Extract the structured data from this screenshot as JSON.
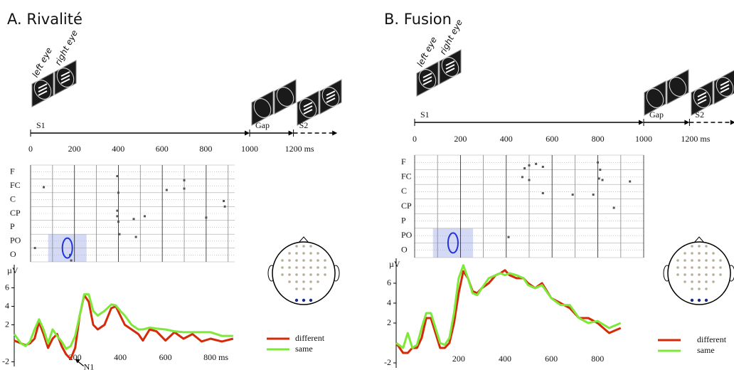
{
  "panels": [
    {
      "title": "A. Rivalité",
      "timeline": {
        "eye_labels": [
          "left eye",
          "right eye"
        ],
        "ticks": [
          0,
          200,
          400,
          600,
          800,
          1000,
          {
            "value": 1200,
            "label": "1200 ms"
          }
        ],
        "phases": [
          {
            "label": "S1",
            "start": 0,
            "end": 1000
          },
          {
            "label": "Gap",
            "start": 1000,
            "end": 1200
          },
          {
            "label": "S2",
            "start": 1200,
            "end": 1400
          }
        ]
      },
      "raster": {
        "rows": [
          "F",
          "FC",
          "C",
          "CP",
          "P",
          "PO",
          "O"
        ],
        "xlim": [
          0,
          930
        ],
        "points": [
          {
            "x": 395,
            "y": 0.3
          },
          {
            "x": 400,
            "y": 1.5
          },
          {
            "x": 395,
            "y": 2.8
          },
          {
            "x": 395,
            "y": 3.2
          },
          {
            "x": 400,
            "y": 3.6
          },
          {
            "x": 405,
            "y": 4.5
          },
          {
            "x": 470,
            "y": 3.4
          },
          {
            "x": 480,
            "y": 4.7
          },
          {
            "x": 520,
            "y": 3.2
          },
          {
            "x": 620,
            "y": 1.3
          },
          {
            "x": 700,
            "y": 0.6
          },
          {
            "x": 700,
            "y": 1.2
          },
          {
            "x": 800,
            "y": 3.3
          },
          {
            "x": 880,
            "y": 2.1
          },
          {
            "x": 885,
            "y": 2.5
          },
          {
            "x": 180,
            "y": 6.0
          },
          {
            "x": 185,
            "y": 6.4
          },
          {
            "x": 60,
            "y": 1.1
          },
          {
            "x": 20,
            "y": 5.5
          }
        ]
      }
    },
    {
      "title": "B. Fusion",
      "timeline": {
        "eye_labels": [
          "left eye",
          "right eye"
        ],
        "ticks": [
          0,
          200,
          400,
          600,
          800,
          1000,
          {
            "value": 1200,
            "label": "1200 ms"
          }
        ],
        "phases": [
          {
            "label": "S1",
            "start": 0,
            "end": 1000
          },
          {
            "label": "Gap",
            "start": 1000,
            "end": 1200
          },
          {
            "label": "S2",
            "start": 1200,
            "end": 1400
          }
        ]
      },
      "raster": {
        "rows": [
          "F",
          "FC",
          "C",
          "CP",
          "P",
          "PO",
          "O"
        ],
        "xlim": [
          0,
          1000
        ],
        "points": [
          {
            "x": 410,
            "y": 5.1
          },
          {
            "x": 500,
            "y": 0.2
          },
          {
            "x": 530,
            "y": 0.1
          },
          {
            "x": 560,
            "y": 0.3
          },
          {
            "x": 480,
            "y": 0.4
          },
          {
            "x": 500,
            "y": 1.2
          },
          {
            "x": 470,
            "y": 1.0
          },
          {
            "x": 800,
            "y": 0
          },
          {
            "x": 810,
            "y": 0.5
          },
          {
            "x": 805,
            "y": 1.1
          },
          {
            "x": 820,
            "y": 1.2
          },
          {
            "x": 560,
            "y": 2.1
          },
          {
            "x": 690,
            "y": 2.2
          },
          {
            "x": 780,
            "y": 2.2
          },
          {
            "x": 870,
            "y": 3.1
          },
          {
            "x": 940,
            "y": 1.3
          }
        ]
      }
    }
  ],
  "chart_data": [
    {
      "type": "line",
      "ylabel": "µV",
      "annotation": "N1",
      "x": [
        -70,
        -40,
        -20,
        0,
        20,
        40,
        60,
        80,
        100,
        120,
        140,
        160,
        180,
        200,
        220,
        240,
        260,
        280,
        300,
        330,
        360,
        380,
        400,
        420,
        450,
        480,
        500,
        530,
        560,
        600,
        640,
        680,
        720,
        760,
        800,
        850,
        900
      ],
      "xlim": [
        -70,
        910
      ],
      "ylim": [
        -2.5,
        8.5
      ],
      "xticks": [
        200,
        400,
        600,
        {
          "value": 800,
          "label": "800 ms"
        }
      ],
      "yticks": [
        6,
        4,
        2,
        -2
      ],
      "series": [
        {
          "name": "different",
          "color": "#d42a0a",
          "values": [
            0.3,
            0,
            -0.2,
            0,
            0.5,
            2.3,
            1,
            -0.5,
            0.5,
            1,
            -0.3,
            -1.2,
            -1.7,
            -0.5,
            3,
            5.2,
            4.5,
            2,
            1.5,
            2,
            3.8,
            4,
            3,
            2,
            1.5,
            1,
            0.3,
            1.5,
            1.3,
            0.3,
            1.2,
            0.5,
            1,
            0.2,
            0.5,
            0.2,
            0.5
          ]
        },
        {
          "name": "same",
          "color": "#7ee83a",
          "values": [
            1,
            0,
            -0.3,
            0.2,
            1.5,
            2.6,
            1.5,
            0,
            1.5,
            0.8,
            0.2,
            -0.6,
            -0.3,
            0.8,
            3,
            5.3,
            5.3,
            3.5,
            3,
            3.5,
            4.2,
            4.1,
            3.5,
            3,
            2,
            1.5,
            1.5,
            1.7,
            1.6,
            1.5,
            1.3,
            1.2,
            1.2,
            1.2,
            1.2,
            0.8,
            0.8
          ]
        }
      ]
    },
    {
      "type": "line",
      "ylabel": "µV",
      "x": [
        -70,
        -40,
        -20,
        0,
        20,
        40,
        60,
        80,
        100,
        120,
        140,
        160,
        180,
        200,
        220,
        240,
        260,
        280,
        300,
        330,
        360,
        380,
        400,
        420,
        450,
        480,
        500,
        530,
        560,
        600,
        640,
        680,
        720,
        760,
        800,
        850,
        900
      ],
      "xlim": [
        -70,
        910
      ],
      "ylim": [
        -2.5,
        8.5
      ],
      "xticks": [
        200,
        400,
        600,
        800
      ],
      "yticks": [
        6,
        4,
        2,
        -2
      ],
      "series": [
        {
          "name": "different",
          "color": "#d42a0a",
          "values": [
            0,
            -1,
            -1,
            -0.5,
            -0.5,
            0.5,
            2.5,
            2.5,
            1,
            -0.5,
            -0.5,
            0,
            2,
            5,
            7.2,
            6.5,
            5.2,
            5,
            5.5,
            6,
            6.8,
            7,
            7.3,
            6.8,
            6.5,
            6.5,
            6,
            5.5,
            6,
            4.5,
            4,
            3.5,
            2.5,
            2.5,
            2,
            1,
            1.5
          ]
        },
        {
          "name": "same",
          "color": "#7ee83a",
          "values": [
            0,
            -0.5,
            1,
            -0.5,
            -0.2,
            1.5,
            3,
            3,
            1.5,
            0,
            -0.2,
            0.5,
            3,
            6.5,
            7.8,
            6.5,
            5,
            4.8,
            5.5,
            6.5,
            6.8,
            7,
            6.8,
            7,
            6.8,
            6.5,
            5.8,
            5.5,
            5.8,
            4.5,
            3.8,
            3.8,
            2.5,
            2,
            2.2,
            1.5,
            2
          ]
        }
      ]
    }
  ]
}
